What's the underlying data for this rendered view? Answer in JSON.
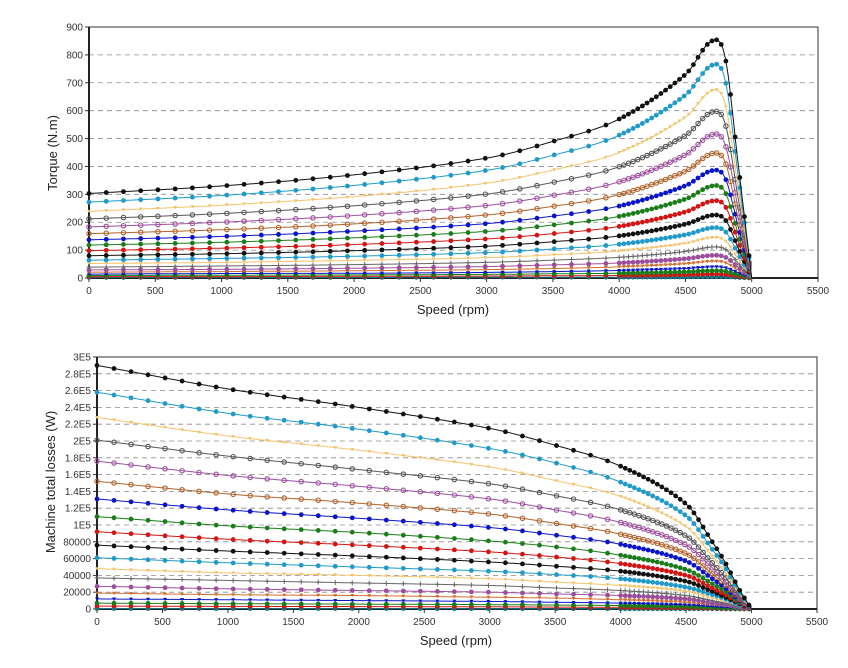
{
  "chart_data": [
    {
      "type": "line",
      "title": "",
      "xlabel": "Speed (rpm)",
      "ylabel": "Torque (N.m)",
      "xlim": [
        0,
        5500
      ],
      "ylim": [
        0,
        900
      ],
      "xticks": [
        "0",
        "500",
        "1000",
        "1500",
        "2000",
        "2500",
        "3000",
        "3500",
        "4000",
        "4500",
        "5000",
        "5500"
      ],
      "yticks": [
        "0",
        "100",
        "200",
        "300",
        "400",
        "500",
        "600",
        "700",
        "800",
        "900"
      ],
      "ytick_values": [
        0,
        100,
        200,
        300,
        400,
        500,
        600,
        700,
        800,
        900
      ],
      "grid": "horizontal-dashed",
      "legend": "none",
      "x": [
        0,
        1000,
        2000,
        3000,
        3500,
        4000,
        4500,
        4700,
        4800,
        4900,
        4950,
        5000
      ],
      "series": [
        {
          "color": "#111111",
          "marker": "dot",
          "values": [
            303,
            330,
            370,
            430,
            490,
            570,
            730,
            850,
            790,
            400,
            200,
            0
          ]
        },
        {
          "color": "#1f9ac9",
          "marker": "dot",
          "values": [
            272,
            296,
            332,
            386,
            440,
            512,
            656,
            763,
            709,
            359,
            180,
            0
          ]
        },
        {
          "color": "#f2c46e",
          "marker": "tri",
          "values": [
            239,
            261,
            292,
            340,
            387,
            450,
            577,
            672,
            624,
            316,
            158,
            0
          ]
        },
        {
          "color": "#555555",
          "marker": "ring",
          "values": [
            212,
            231,
            259,
            301,
            343,
            399,
            511,
            595,
            553,
            280,
            140,
            0
          ]
        },
        {
          "color": "#9b4f9b",
          "marker": "ring",
          "values": [
            183,
            200,
            224,
            260,
            296,
            345,
            442,
            514,
            478,
            242,
            121,
            0
          ]
        },
        {
          "color": "#b0622a",
          "marker": "ring",
          "values": [
            159,
            173,
            194,
            226,
            257,
            299,
            383,
            446,
            415,
            210,
            105,
            0
          ]
        },
        {
          "color": "#0a14c8",
          "marker": "dot",
          "values": [
            137,
            149,
            168,
            195,
            222,
            258,
            331,
            385,
            358,
            181,
            91,
            0
          ]
        },
        {
          "color": "#1a7d1a",
          "marker": "dot",
          "values": [
            118,
            128,
            144,
            167,
            190,
            221,
            283,
            330,
            307,
            155,
            78,
            0
          ]
        },
        {
          "color": "#d21414",
          "marker": "dot",
          "values": [
            98,
            107,
            120,
            140,
            159,
            185,
            237,
            276,
            257,
            130,
            65,
            0
          ]
        },
        {
          "color": "#111111",
          "marker": "dot",
          "values": [
            80,
            87,
            98,
            114,
            130,
            151,
            193,
            225,
            209,
            106,
            53,
            0
          ]
        },
        {
          "color": "#1f9ac9",
          "marker": "dot",
          "values": [
            64,
            70,
            78,
            91,
            104,
            121,
            155,
            180,
            167,
            85,
            42,
            0
          ]
        },
        {
          "color": "#f2c46e",
          "marker": "tri",
          "values": [
            52,
            56,
            63,
            73,
            83,
            97,
            124,
            145,
            134,
            68,
            34,
            0
          ]
        },
        {
          "color": "#666666",
          "marker": "plus",
          "values": [
            39,
            43,
            48,
            56,
            64,
            74,
            95,
            111,
            103,
            52,
            26,
            0
          ]
        },
        {
          "color": "#9b4f9b",
          "marker": "dot",
          "values": [
            29,
            31,
            35,
            41,
            47,
            54,
            69,
            81,
            75,
            38,
            19,
            0
          ]
        },
        {
          "color": "#d07030",
          "marker": "tri",
          "values": [
            21,
            23,
            26,
            30,
            34,
            40,
            51,
            60,
            55,
            28,
            14,
            0
          ]
        },
        {
          "color": "#0a14c8",
          "marker": "tri",
          "values": [
            14,
            16,
            17,
            20,
            23,
            27,
            34,
            40,
            37,
            19,
            9,
            0
          ]
        },
        {
          "color": "#1a7d1a",
          "marker": "dot",
          "values": [
            9,
            10,
            11,
            13,
            15,
            17,
            22,
            26,
            24,
            12,
            6,
            0
          ]
        },
        {
          "color": "#d21414",
          "marker": "dot",
          "values": [
            5,
            5,
            6,
            7,
            8,
            9,
            12,
            14,
            13,
            6,
            3,
            0
          ]
        },
        {
          "color": "#0e7a8a",
          "marker": "dot",
          "values": [
            2,
            2,
            2,
            3,
            3,
            3,
            4,
            5,
            5,
            2,
            1,
            0
          ]
        }
      ]
    },
    {
      "type": "line",
      "title": "",
      "xlabel": "Speed (rpm)",
      "ylabel": "Machine total losses (W)",
      "xlim": [
        0,
        5500
      ],
      "ylim": [
        0,
        300000
      ],
      "xticks": [
        "0",
        "500",
        "1000",
        "1500",
        "2000",
        "2500",
        "3000",
        "3500",
        "4000",
        "4500",
        "5000",
        "5500"
      ],
      "yticks": [
        "0",
        "20000",
        "40000",
        "60000",
        "80000",
        "1E5",
        "1.2E5",
        "1.4E5",
        "1.6E5",
        "1.8E5",
        "2E5",
        "2.2E5",
        "2.4E5",
        "2.6E5",
        "2.8E5",
        "3E5"
      ],
      "ytick_values": [
        0,
        20000,
        40000,
        60000,
        80000,
        100000,
        120000,
        140000,
        160000,
        180000,
        200000,
        220000,
        240000,
        260000,
        280000,
        300000
      ],
      "grid": "horizontal-dashed",
      "legend": "none",
      "x": [
        0,
        1000,
        2000,
        3000,
        3500,
        4000,
        4500,
        4700,
        4800,
        4900,
        4950,
        5000
      ],
      "series": [
        {
          "color": "#111111",
          "marker": "dot",
          "values": [
            290000,
            262000,
            240000,
            215000,
            195000,
            170000,
            125000,
            80000,
            55000,
            25000,
            12000,
            0
          ]
        },
        {
          "color": "#1f9ac9",
          "marker": "dot",
          "values": [
            258000,
            233000,
            214000,
            191000,
            174000,
            151000,
            111000,
            71000,
            49000,
            22000,
            11000,
            0
          ]
        },
        {
          "color": "#f2c46e",
          "marker": "tri",
          "values": [
            228000,
            206000,
            189000,
            169000,
            153000,
            134000,
            98000,
            63000,
            43000,
            20000,
            9000,
            0
          ]
        },
        {
          "color": "#555555",
          "marker": "ring",
          "values": [
            201000,
            182000,
            166000,
            149000,
            135000,
            118000,
            87000,
            55000,
            38000,
            17000,
            8000,
            0
          ]
        },
        {
          "color": "#9b4f9b",
          "marker": "ring",
          "values": [
            176000,
            159000,
            146000,
            131000,
            118000,
            103000,
            76000,
            49000,
            33000,
            15000,
            7000,
            0
          ]
        },
        {
          "color": "#b0622a",
          "marker": "ring",
          "values": [
            152000,
            137000,
            126000,
            113000,
            102000,
            89000,
            66000,
            42000,
            29000,
            13000,
            6000,
            0
          ]
        },
        {
          "color": "#0a14c8",
          "marker": "dot",
          "values": [
            131000,
            118000,
            108000,
            97000,
            88000,
            77000,
            57000,
            36000,
            25000,
            11000,
            5000,
            0
          ]
        },
        {
          "color": "#1a7d1a",
          "marker": "dot",
          "values": [
            110000,
            99000,
            91000,
            81000,
            74000,
            64000,
            47000,
            30000,
            21000,
            9000,
            5000,
            0
          ]
        },
        {
          "color": "#d21414",
          "marker": "dot",
          "values": [
            92000,
            83000,
            76000,
            68000,
            62000,
            54000,
            40000,
            25000,
            17000,
            8000,
            4000,
            0
          ]
        },
        {
          "color": "#111111",
          "marker": "dot",
          "values": [
            76000,
            69000,
            63000,
            56000,
            51000,
            45000,
            33000,
            21000,
            14000,
            7000,
            3000,
            0
          ]
        },
        {
          "color": "#1f9ac9",
          "marker": "dot",
          "values": [
            61000,
            55000,
            50000,
            45000,
            41000,
            36000,
            26000,
            17000,
            12000,
            5000,
            3000,
            0
          ]
        },
        {
          "color": "#f2c46e",
          "marker": "tri",
          "values": [
            48000,
            43000,
            40000,
            36000,
            32000,
            28000,
            21000,
            13000,
            9000,
            4000,
            2000,
            0
          ]
        },
        {
          "color": "#666666",
          "marker": "plus",
          "values": [
            37000,
            34000,
            31000,
            28000,
            25000,
            22000,
            16000,
            10000,
            7000,
            3000,
            2000,
            0
          ]
        },
        {
          "color": "#9b4f9b",
          "marker": "dot",
          "values": [
            27000,
            24000,
            22000,
            20000,
            18000,
            16000,
            12000,
            7000,
            5000,
            2000,
            1000,
            0
          ]
        },
        {
          "color": "#d07030",
          "marker": "tri",
          "values": [
            19000,
            17000,
            16000,
            14000,
            13000,
            11000,
            8000,
            5000,
            4000,
            2000,
            1000,
            0
          ]
        },
        {
          "color": "#0a14c8",
          "marker": "tri",
          "values": [
            12000,
            11000,
            10000,
            9000,
            8000,
            7000,
            5000,
            3000,
            2000,
            1000,
            500,
            0
          ]
        },
        {
          "color": "#1a7d1a",
          "marker": "dot",
          "values": [
            7000,
            6300,
            5800,
            5200,
            4700,
            4100,
            3000,
            1900,
            1300,
            600,
            300,
            0
          ]
        },
        {
          "color": "#d21414",
          "marker": "dot",
          "values": [
            3500,
            3100,
            2900,
            2600,
            2300,
            2000,
            1500,
            1000,
            700,
            300,
            100,
            0
          ]
        },
        {
          "color": "#0e7a8a",
          "marker": "dot",
          "values": [
            600,
            500,
            500,
            400,
            400,
            300,
            300,
            200,
            100,
            50,
            0,
            0
          ]
        }
      ]
    }
  ]
}
